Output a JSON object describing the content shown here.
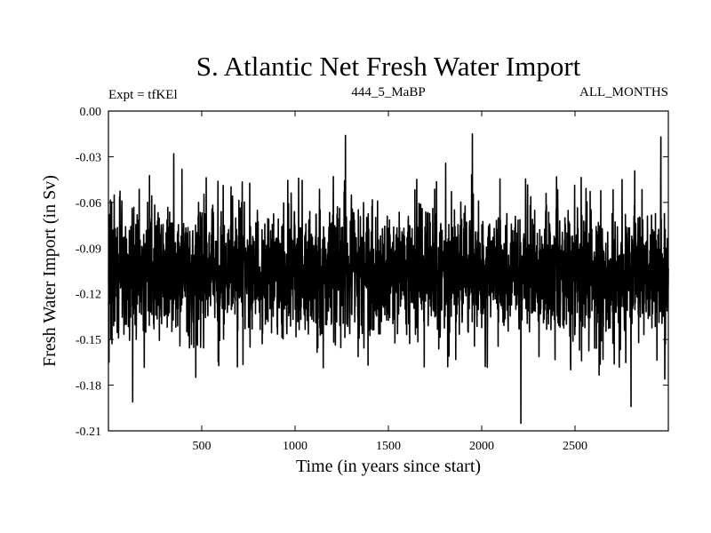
{
  "chart_data": {
    "type": "line",
    "title": "S. Atlantic Net Fresh Water Import",
    "subtitle_left": "Expt = tfKEl",
    "subtitle_center": "444_5_MaBP",
    "subtitle_right": "ALL_MONTHS",
    "xlabel": "Time (in years since start)",
    "ylabel": "Fresh Water Import (in Sv)",
    "xlim": [
      0,
      3000
    ],
    "ylim": [
      -0.21,
      0.0
    ],
    "x_ticks": [
      500,
      1000,
      1500,
      2000,
      2500
    ],
    "y_ticks": [
      0.0,
      -0.03,
      -0.06,
      -0.09,
      -0.12,
      -0.15,
      -0.18,
      -0.21
    ],
    "y_tick_labels": [
      "0.00",
      "-0.03",
      "-0.06",
      "-0.09",
      "-0.12",
      "-0.15",
      "-0.18",
      "-0.21"
    ],
    "grid": false,
    "line_color": "#000000",
    "series": [
      {
        "x_start": 1,
        "x_step": 1,
        "n": 3000,
        "mean": -0.105,
        "std": 0.022,
        "min": -0.205,
        "max": -0.015,
        "extremes": [
          {
            "x": 130,
            "y": -0.191
          },
          {
            "x": 350,
            "y": -0.028
          },
          {
            "x": 1270,
            "y": -0.016
          },
          {
            "x": 1950,
            "y": -0.015
          },
          {
            "x": 2210,
            "y": -0.205
          },
          {
            "x": 2800,
            "y": -0.194
          },
          {
            "x": 2960,
            "y": -0.017
          }
        ]
      }
    ]
  }
}
